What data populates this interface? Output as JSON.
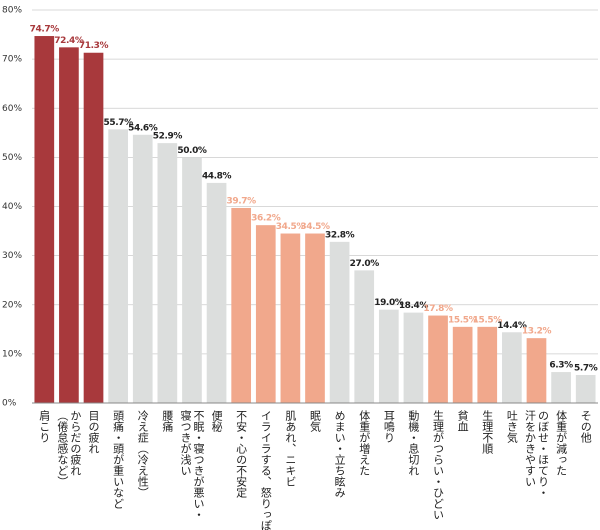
{
  "chart_data": {
    "type": "bar",
    "categories": [
      "肩こり",
      "からだの疲れ\n（倦怠感など）",
      "目の疲れ",
      "頭痛・頭が重いなど",
      "冷え症（冷え性）",
      "腰痛",
      "不眠・寝つきが悪い・\n寝つきが浅い",
      "便秘",
      "不安・心の不安定",
      "イライラする、怒りっぽい",
      "肌あれ、ニキビ",
      "眠気",
      "めまい・立ち眩み",
      "体重が増えた",
      "耳鳴り",
      "動機・息切れ",
      "生理がつらい・ひどい",
      "貧血",
      "生理不順",
      "吐き気",
      "のぼせ・ほてり・\n汗をかきやすい",
      "体重が減った",
      "その他"
    ],
    "values": [
      74.7,
      72.4,
      71.3,
      55.7,
      54.6,
      52.9,
      50.0,
      44.8,
      39.7,
      36.2,
      34.5,
      34.5,
      32.8,
      27.0,
      19.0,
      18.4,
      17.8,
      15.5,
      15.5,
      14.4,
      13.2,
      6.3,
      5.7
    ],
    "value_labels": [
      "74.7%",
      "72.4%",
      "71.3%",
      "55.7%",
      "54.6%",
      "52.9%",
      "50.0%",
      "44.8%",
      "39.7%",
      "36.2%",
      "34.5%",
      "34.5%",
      "32.8%",
      "27.0%",
      "19.0%",
      "18.4%",
      "17.8%",
      "15.5%",
      "15.5%",
      "14.4%",
      "13.2%",
      "6.3%",
      "5.7%"
    ],
    "colors": [
      "#a8393c",
      "#a8393c",
      "#a8393c",
      "#dcdedd",
      "#dcdedd",
      "#dcdedd",
      "#dcdedd",
      "#dcdedd",
      "#f1a88c",
      "#f1a88c",
      "#f1a88c",
      "#f1a88c",
      "#dcdedd",
      "#dcdedd",
      "#dcdedd",
      "#dcdedd",
      "#f1a88c",
      "#f1a88c",
      "#f1a88c",
      "#dcdedd",
      "#f1a88c",
      "#dcdedd",
      "#dcdedd"
    ],
    "ylim": [
      0,
      80
    ],
    "yticks": [
      {
        "value": 0,
        "label": "0%"
      },
      {
        "value": 10,
        "label": "10%"
      },
      {
        "value": 20,
        "label": "20%"
      },
      {
        "value": 30,
        "label": "30%"
      },
      {
        "value": 40,
        "label": "40%"
      },
      {
        "value": 50,
        "label": "50%"
      },
      {
        "value": 60,
        "label": "60%"
      },
      {
        "value": 70,
        "label": "70%"
      },
      {
        "value": 80,
        "label": "80%"
      }
    ],
    "grid": true
  }
}
